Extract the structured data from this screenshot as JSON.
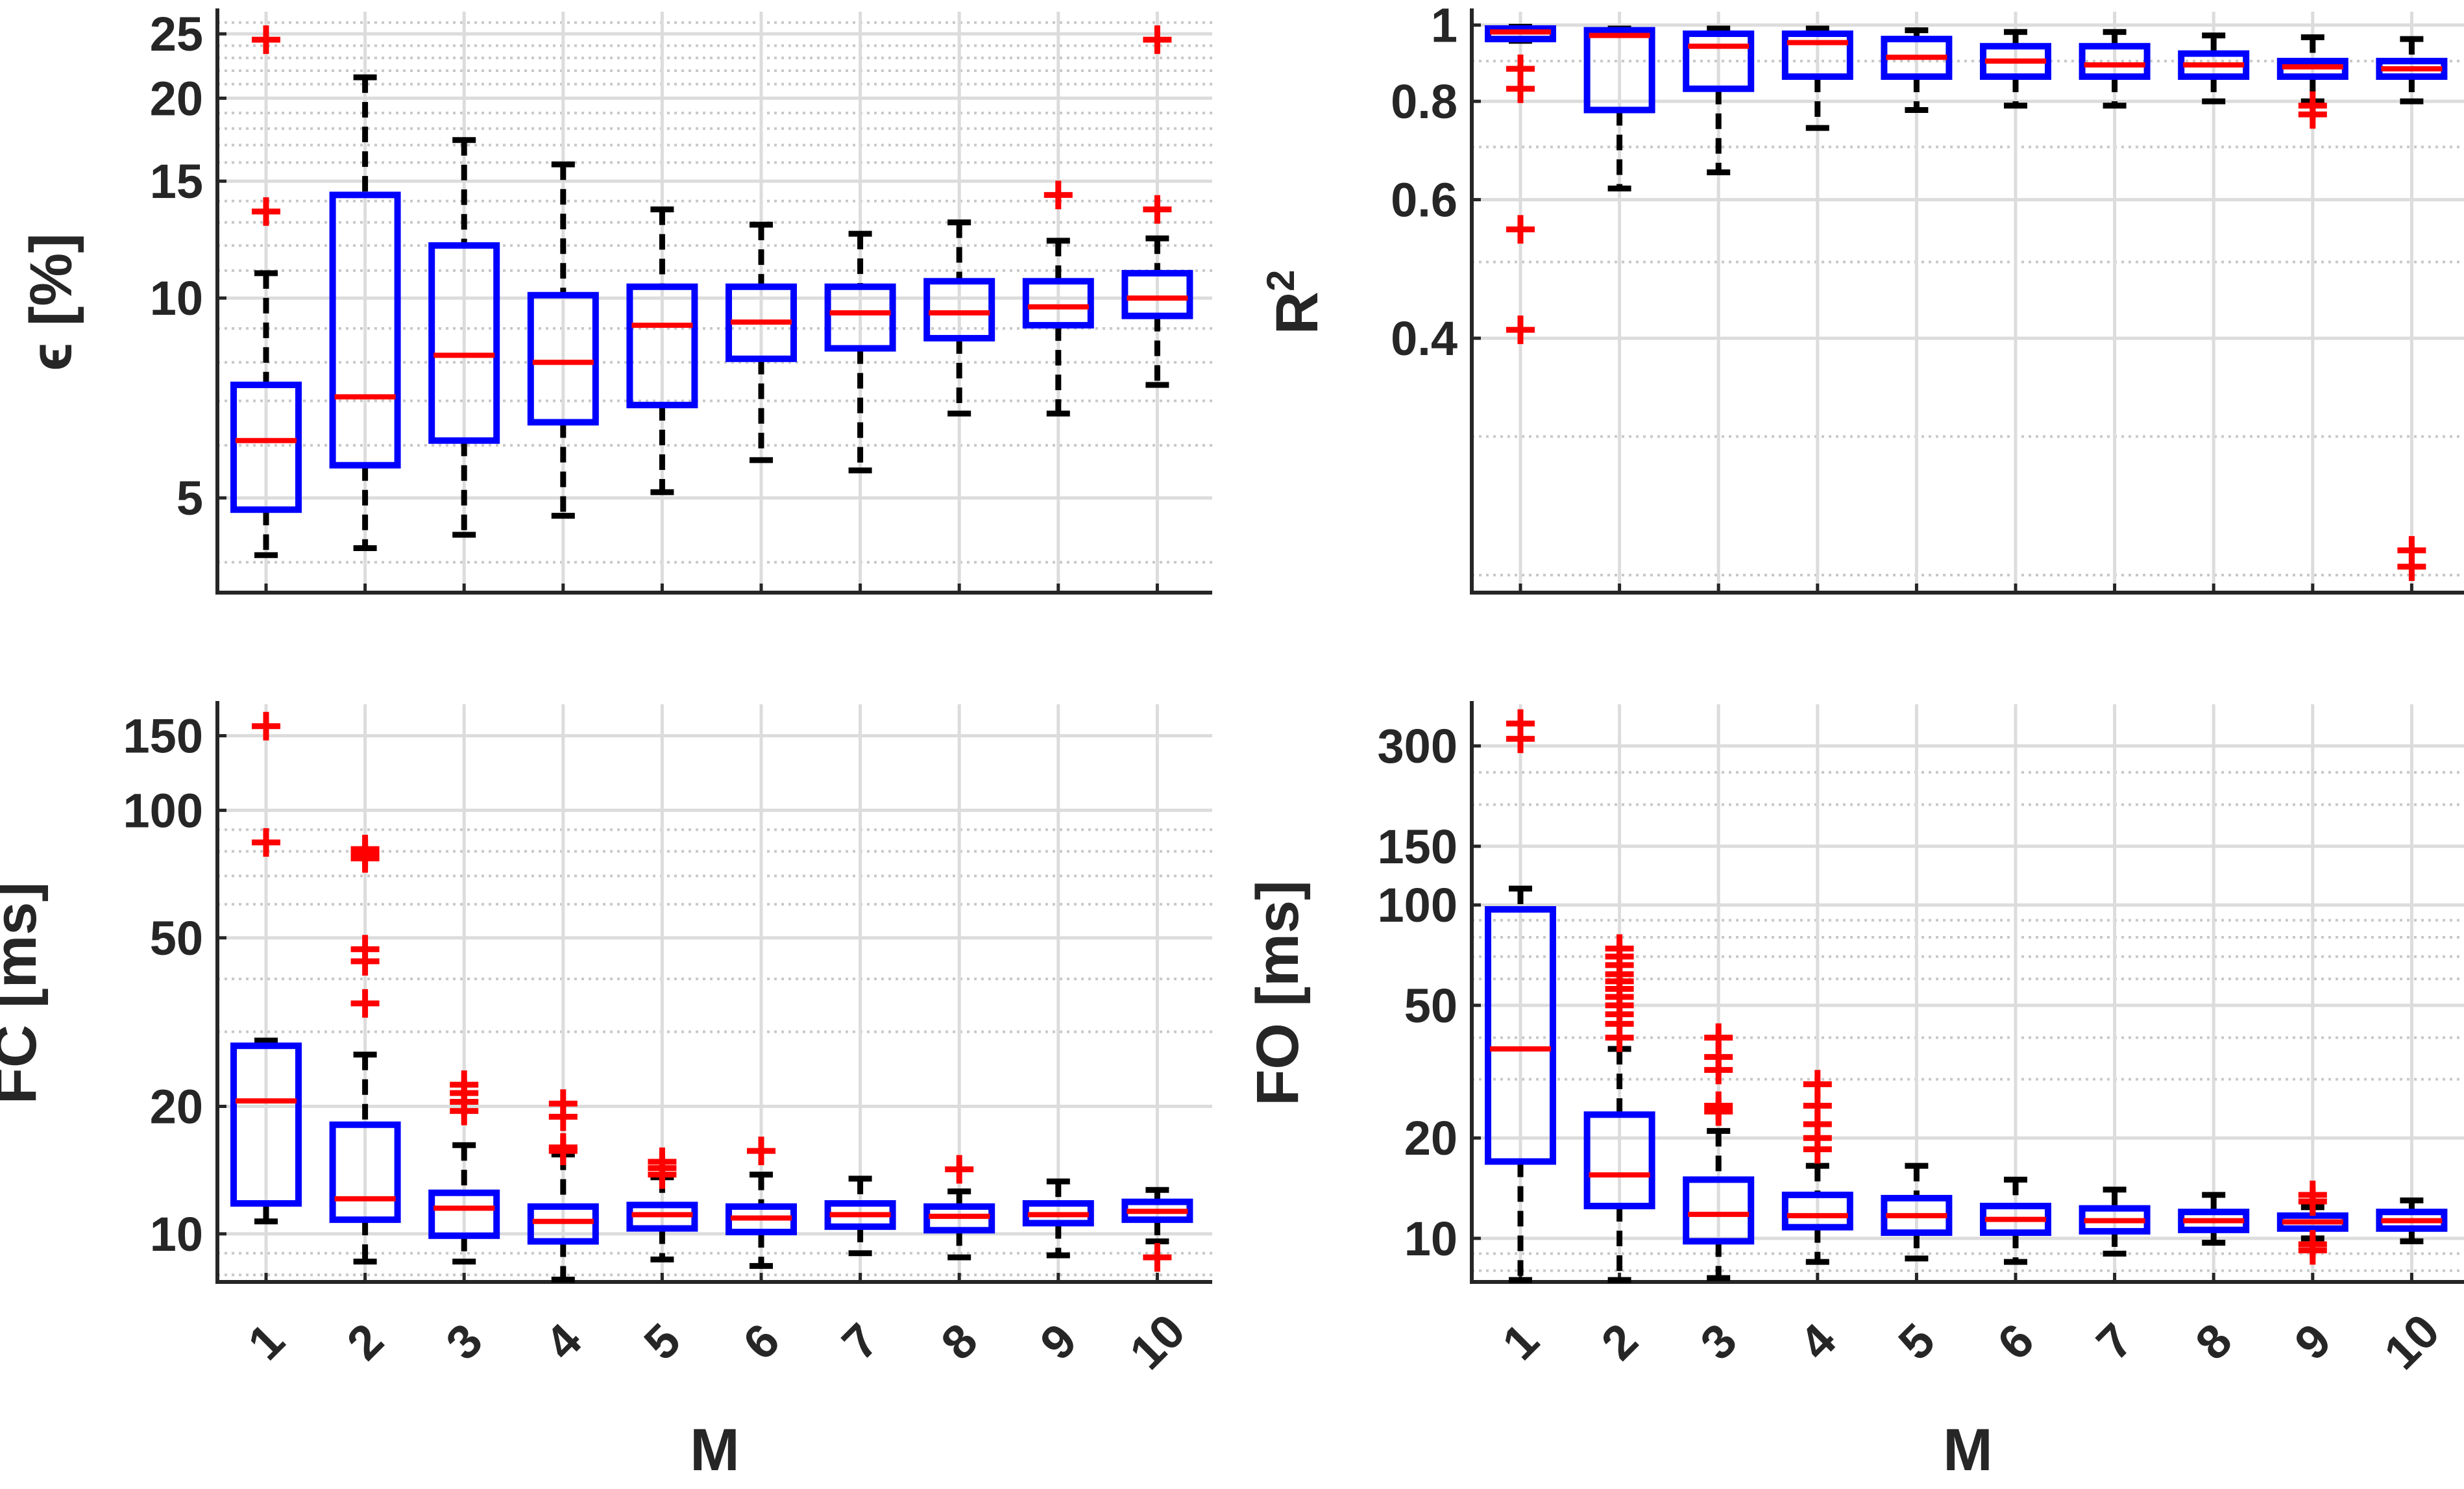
{
  "chart_data": [
    {
      "type": "box",
      "panel": "top-left",
      "ylabel": "ϵ [%]",
      "xlabel": "",
      "scale": "log",
      "ylim": [
        3.6,
        27
      ],
      "yticks": [
        5,
        10,
        15,
        20,
        25
      ],
      "ytick_labels": [
        "5",
        "10",
        "15",
        "20",
        "25"
      ],
      "minor_grid": [
        4,
        6,
        7,
        8,
        9,
        11,
        12,
        13,
        14,
        16,
        17,
        18,
        19,
        21,
        22,
        23,
        24,
        26
      ],
      "categories": [
        "1",
        "2",
        "3",
        "4",
        "5",
        "6",
        "7",
        "8",
        "9",
        "10"
      ],
      "boxes": [
        {
          "wlo": 4.1,
          "q1": 4.8,
          "med": 6.1,
          "q3": 7.4,
          "whi": 10.9,
          "outliers": [
            13.5,
            24.5
          ]
        },
        {
          "wlo": 4.2,
          "q1": 5.6,
          "med": 7.1,
          "q3": 14.3,
          "whi": 21.5,
          "outliers": []
        },
        {
          "wlo": 4.4,
          "q1": 6.1,
          "med": 8.2,
          "q3": 12.0,
          "whi": 17.3,
          "outliers": []
        },
        {
          "wlo": 4.7,
          "q1": 6.5,
          "med": 8.0,
          "q3": 10.1,
          "whi": 15.9,
          "outliers": []
        },
        {
          "wlo": 5.1,
          "q1": 6.9,
          "med": 9.1,
          "q3": 10.4,
          "whi": 13.6,
          "outliers": []
        },
        {
          "wlo": 5.7,
          "q1": 8.1,
          "med": 9.2,
          "q3": 10.4,
          "whi": 12.9,
          "outliers": []
        },
        {
          "wlo": 5.5,
          "q1": 8.4,
          "med": 9.5,
          "q3": 10.4,
          "whi": 12.5,
          "outliers": []
        },
        {
          "wlo": 6.7,
          "q1": 8.7,
          "med": 9.5,
          "q3": 10.6,
          "whi": 13.0,
          "outliers": []
        },
        {
          "wlo": 6.7,
          "q1": 9.1,
          "med": 9.7,
          "q3": 10.6,
          "whi": 12.2,
          "outliers": [
            14.3
          ]
        },
        {
          "wlo": 7.4,
          "q1": 9.4,
          "med": 10.0,
          "q3": 10.9,
          "whi": 12.3,
          "outliers": [
            13.6,
            24.5
          ]
        }
      ]
    },
    {
      "type": "box",
      "panel": "top-right",
      "ylabel": "R",
      "ylabel_sup": "2",
      "xlabel": "",
      "scale": "log",
      "ylim": [
        0.19,
        1.04
      ],
      "yticks": [
        0.4,
        0.6,
        0.8,
        1
      ],
      "ytick_labels": [
        "0.4",
        "0.6",
        "0.8",
        "1"
      ],
      "minor_grid": [
        0.2,
        0.3,
        0.5,
        0.7,
        0.9
      ],
      "categories": [
        "1",
        "2",
        "3",
        "4",
        "5",
        "6",
        "7",
        "8",
        "9",
        "10"
      ],
      "boxes": [
        {
          "wlo": 0.955,
          "q1": 0.96,
          "med": 0.98,
          "q3": 0.99,
          "whi": 0.995,
          "outliers": [
            0.83,
            0.88,
            0.55,
            0.41
          ]
        },
        {
          "wlo": 0.62,
          "q1": 0.78,
          "med": 0.97,
          "q3": 0.985,
          "whi": 0.99,
          "outliers": []
        },
        {
          "wlo": 0.65,
          "q1": 0.83,
          "med": 0.94,
          "q3": 0.975,
          "whi": 0.99,
          "outliers": []
        },
        {
          "wlo": 0.74,
          "q1": 0.86,
          "med": 0.95,
          "q3": 0.975,
          "whi": 0.99,
          "outliers": []
        },
        {
          "wlo": 0.78,
          "q1": 0.86,
          "med": 0.91,
          "q3": 0.96,
          "whi": 0.985,
          "outliers": []
        },
        {
          "wlo": 0.79,
          "q1": 0.86,
          "med": 0.9,
          "q3": 0.94,
          "whi": 0.98,
          "outliers": []
        },
        {
          "wlo": 0.79,
          "q1": 0.86,
          "med": 0.89,
          "q3": 0.94,
          "whi": 0.98,
          "outliers": []
        },
        {
          "wlo": 0.8,
          "q1": 0.86,
          "med": 0.89,
          "q3": 0.92,
          "whi": 0.97,
          "outliers": []
        },
        {
          "wlo": 0.8,
          "q1": 0.86,
          "med": 0.885,
          "q3": 0.9,
          "whi": 0.965,
          "outliers": [
            0.77,
            0.79
          ]
        },
        {
          "wlo": 0.8,
          "q1": 0.86,
          "med": 0.88,
          "q3": 0.9,
          "whi": 0.96,
          "outliers": [
            0.205,
            0.215
          ]
        }
      ]
    },
    {
      "type": "box",
      "panel": "bottom-left",
      "ylabel": "FC [ms]",
      "xlabel": "M",
      "scale": "log",
      "ylim": [
        7.7,
        178
      ],
      "yticks": [
        10,
        20,
        50,
        100,
        150
      ],
      "ytick_labels": [
        "10",
        "20",
        "50",
        "100",
        "150"
      ],
      "minor_grid": [
        8,
        9,
        30,
        40,
        60,
        70,
        80,
        90
      ],
      "categories": [
        "1",
        "2",
        "3",
        "4",
        "5",
        "6",
        "7",
        "8",
        "9",
        "10"
      ],
      "boxes": [
        {
          "wlo": 10.7,
          "q1": 11.8,
          "med": 20.6,
          "q3": 27.8,
          "whi": 28.6,
          "outliers": [
            84,
            158
          ]
        },
        {
          "wlo": 8.6,
          "q1": 10.8,
          "med": 12.1,
          "q3": 18.1,
          "whi": 26.5,
          "outliers": [
            35,
            44,
            47,
            77,
            79,
            81
          ]
        },
        {
          "wlo": 8.6,
          "q1": 9.9,
          "med": 11.5,
          "q3": 12.5,
          "whi": 16.2,
          "outliers": [
            19.5,
            20.5,
            21.5,
            22.5
          ]
        },
        {
          "wlo": 7.8,
          "q1": 9.6,
          "med": 10.7,
          "q3": 11.6,
          "whi": 15.4,
          "outliers": [
            15.7,
            16.0,
            18.9,
            20.3
          ]
        },
        {
          "wlo": 8.7,
          "q1": 10.3,
          "med": 11.1,
          "q3": 11.7,
          "whi": 13.6,
          "outliers": [
            13.8,
            14.3,
            14.8
          ]
        },
        {
          "wlo": 8.4,
          "q1": 10.1,
          "med": 10.9,
          "q3": 11.6,
          "whi": 13.8,
          "outliers": [
            15.7
          ]
        },
        {
          "wlo": 9.0,
          "q1": 10.4,
          "med": 11.1,
          "q3": 11.8,
          "whi": 13.5,
          "outliers": []
        },
        {
          "wlo": 8.8,
          "q1": 10.2,
          "med": 11.0,
          "q3": 11.6,
          "whi": 12.6,
          "outliers": [
            14.2
          ]
        },
        {
          "wlo": 8.9,
          "q1": 10.6,
          "med": 11.1,
          "q3": 11.8,
          "whi": 13.3,
          "outliers": []
        },
        {
          "wlo": 9.6,
          "q1": 10.8,
          "med": 11.3,
          "q3": 11.9,
          "whi": 12.7,
          "outliers": [
            8.8
          ]
        }
      ]
    },
    {
      "type": "box",
      "panel": "bottom-right",
      "ylabel": "FO [ms]",
      "xlabel": "M",
      "scale": "log",
      "ylim": [
        7.4,
        400
      ],
      "yticks": [
        10,
        20,
        50,
        100,
        150,
        300
      ],
      "ytick_labels": [
        "10",
        "20",
        "50",
        "100",
        "150",
        "300"
      ],
      "minor_grid": [
        8,
        9,
        30,
        40,
        60,
        70,
        80,
        90,
        200,
        250
      ],
      "categories": [
        "1",
        "2",
        "3",
        "4",
        "5",
        "6",
        "7",
        "8",
        "9",
        "10"
      ],
      "boxes": [
        {
          "wlo": 7.5,
          "q1": 17.0,
          "med": 37.0,
          "q3": 97.0,
          "whi": 112.0,
          "outliers": [
            315,
            350
          ]
        },
        {
          "wlo": 7.5,
          "q1": 12.5,
          "med": 15.5,
          "q3": 23.5,
          "whi": 37.0,
          "outliers": [
            40,
            44,
            47,
            50,
            53,
            56,
            59,
            62,
            66,
            70,
            74
          ]
        },
        {
          "wlo": 7.6,
          "q1": 9.8,
          "med": 11.8,
          "q3": 15.0,
          "whi": 21.0,
          "outliers": [
            24,
            25,
            32,
            35,
            40
          ]
        },
        {
          "wlo": 8.5,
          "q1": 10.8,
          "med": 11.7,
          "q3": 13.5,
          "whi": 16.5,
          "outliers": [
            18.5,
            20,
            22,
            25,
            29
          ]
        },
        {
          "wlo": 8.7,
          "q1": 10.4,
          "med": 11.7,
          "q3": 13.2,
          "whi": 16.5,
          "outliers": []
        },
        {
          "wlo": 8.5,
          "q1": 10.4,
          "med": 11.4,
          "q3": 12.5,
          "whi": 15.0,
          "outliers": []
        },
        {
          "wlo": 9.0,
          "q1": 10.5,
          "med": 11.3,
          "q3": 12.3,
          "whi": 14.0,
          "outliers": []
        },
        {
          "wlo": 9.7,
          "q1": 10.6,
          "med": 11.3,
          "q3": 12.0,
          "whi": 13.5,
          "outliers": []
        },
        {
          "wlo": 10.0,
          "q1": 10.7,
          "med": 11.2,
          "q3": 11.7,
          "whi": 12.4,
          "outliers": [
            9.2,
            9.6,
            12.9,
            13.5
          ]
        },
        {
          "wlo": 9.8,
          "q1": 10.7,
          "med": 11.3,
          "q3": 12.0,
          "whi": 13.0,
          "outliers": []
        }
      ]
    }
  ],
  "colors": {
    "box": "#0000ff",
    "median": "#ff0000",
    "whisker": "#000000",
    "outlier": "#ff0000",
    "grid_major": "#dcdcdc",
    "grid_minor": "#c8c8c8"
  }
}
